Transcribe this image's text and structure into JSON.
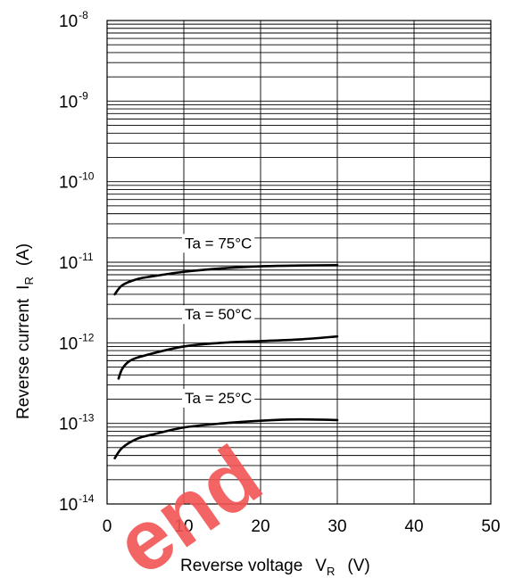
{
  "chart_data": {
    "type": "line",
    "title": "",
    "xlabel": {
      "text": "Reverse voltage",
      "symbol": "V",
      "subscript": "R",
      "unit": "(V)"
    },
    "ylabel": {
      "text": "Reverse current",
      "symbol": "I",
      "subscript": "R",
      "unit": "(A)"
    },
    "xlim": [
      0,
      50
    ],
    "ylim": [
      1e-14,
      1e-08
    ],
    "yscale": "log",
    "grid": true,
    "xticks": [
      "0",
      "10",
      "20",
      "30",
      "40",
      "50"
    ],
    "yticks": [
      {
        "base": "10",
        "exp": "-14"
      },
      {
        "base": "10",
        "exp": "-13"
      },
      {
        "base": "10",
        "exp": "-12"
      },
      {
        "base": "10",
        "exp": "-11"
      },
      {
        "base": "10",
        "exp": "-10"
      },
      {
        "base": "10",
        "exp": "-9"
      },
      {
        "base": "10",
        "exp": "-8"
      }
    ],
    "series": [
      {
        "name": "Ta = 75°C",
        "x": [
          1,
          2,
          4,
          6,
          10,
          15,
          20,
          25,
          30
        ],
        "y": [
          4e-12,
          5.2e-12,
          6.2e-12,
          6.7e-12,
          7.6e-12,
          8.4e-12,
          8.9e-12,
          9.1e-12,
          9.2e-12
        ]
      },
      {
        "name": "Ta = 50°C",
        "x": [
          1.5,
          2,
          3,
          5,
          10,
          15,
          20,
          25,
          30
        ],
        "y": [
          3.6e-13,
          4.8e-13,
          6e-13,
          7e-13,
          9e-13,
          1e-12,
          1.05e-12,
          1.1e-12,
          1.2e-12
        ]
      },
      {
        "name": "Ta = 25°C",
        "x": [
          1,
          2,
          4,
          6,
          10,
          15,
          20,
          25,
          30
        ],
        "y": [
          3.7e-14,
          5e-14,
          6.5e-14,
          7.3e-14,
          8.9e-14,
          1e-13,
          1.08e-13,
          1.12e-13,
          1.1e-13
        ]
      }
    ]
  },
  "watermark": {
    "text": "end",
    "color": "#f25555"
  }
}
